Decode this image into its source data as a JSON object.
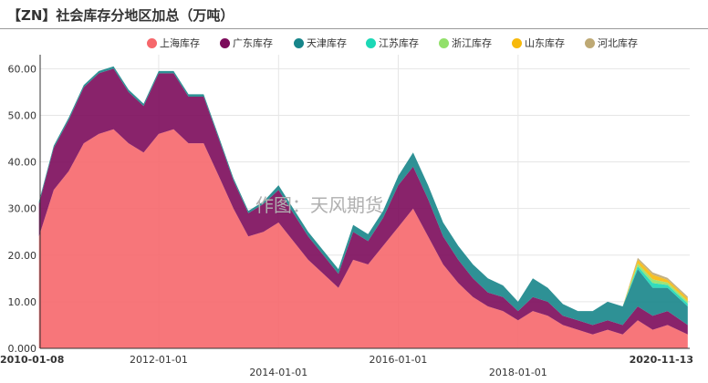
{
  "title": "【ZN】社会库存分地区加总（万吨）",
  "watermark": "作图：天风期货",
  "chart_data": {
    "type": "area",
    "stacked": true,
    "title": "【ZN】社会库存分地区加总（万吨）",
    "xlabel": "",
    "ylabel": "",
    "x_start": "2010-01-08",
    "x_end": "2020-11-13",
    "x_ticks": [
      "2010-01-08",
      "2012-01-01",
      "2014-01-01",
      "2016-01-01",
      "2018-01-01",
      "2020-11-13"
    ],
    "y_ticks": [
      "0.000",
      "10.00",
      "20.00",
      "30.00",
      "40.00",
      "50.00",
      "60.00"
    ],
    "ylim": [
      0,
      63
    ],
    "grid": true,
    "legend_position": "top",
    "x": [
      "2010-01",
      "2010-04",
      "2010-07",
      "2010-10",
      "2011-01",
      "2011-04",
      "2011-07",
      "2011-10",
      "2012-01",
      "2012-04",
      "2012-07",
      "2012-10",
      "2013-01",
      "2013-04",
      "2013-07",
      "2013-10",
      "2014-01",
      "2014-04",
      "2014-07",
      "2014-10",
      "2015-01",
      "2015-04",
      "2015-07",
      "2015-10",
      "2016-01",
      "2016-04",
      "2016-07",
      "2016-10",
      "2017-01",
      "2017-04",
      "2017-07",
      "2017-10",
      "2018-01",
      "2018-04",
      "2018-07",
      "2018-10",
      "2019-01",
      "2019-04",
      "2019-07",
      "2019-10",
      "2020-01",
      "2020-04",
      "2020-07",
      "2020-11"
    ],
    "series": [
      {
        "name": "上海库存",
        "color": "#f6676b",
        "values": [
          24,
          34,
          38,
          44,
          46,
          47,
          44,
          42,
          46,
          47,
          44,
          44,
          37,
          30,
          24,
          25,
          27,
          23,
          19,
          16,
          13,
          19,
          18,
          22,
          26,
          30,
          24,
          18,
          14,
          11,
          9,
          8,
          6,
          8,
          7,
          5,
          4,
          3,
          4,
          3,
          6,
          4,
          5,
          3
        ]
      },
      {
        "name": "广东库存",
        "color": "#7c0b5b",
        "values": [
          7,
          9,
          11,
          12,
          13,
          13,
          11,
          10,
          13,
          12,
          10,
          10,
          8,
          6,
          5,
          6,
          7,
          6,
          5,
          4,
          3,
          6,
          5,
          6,
          9,
          9,
          8,
          6,
          5,
          4,
          3,
          3,
          2,
          3,
          3,
          2,
          2,
          2,
          2,
          2,
          3,
          3,
          3,
          2
        ]
      },
      {
        "name": "天津库存",
        "color": "#17858a",
        "values": [
          0.5,
          0.5,
          0.5,
          0.5,
          0.5,
          0.5,
          0.5,
          0.5,
          0.5,
          0.5,
          0.5,
          0.5,
          0.5,
          0.5,
          0.5,
          0.5,
          1,
          1,
          1,
          1,
          1,
          1.5,
          1.5,
          1.5,
          2,
          3,
          3,
          3,
          3,
          3,
          3,
          2.5,
          2,
          4,
          3,
          2.5,
          2,
          3,
          4,
          4,
          8,
          6,
          5,
          4
        ]
      },
      {
        "name": "江苏库存",
        "color": "#1cd8b6",
        "values": [
          0,
          0,
          0,
          0,
          0,
          0,
          0,
          0,
          0,
          0,
          0,
          0,
          0,
          0,
          0,
          0,
          0,
          0,
          0,
          0,
          0,
          0,
          0,
          0,
          0,
          0,
          0,
          0,
          0,
          0,
          0,
          0,
          0,
          0,
          0,
          0,
          0,
          0,
          0,
          0,
          0.6,
          1,
          0.6,
          0.6
        ]
      },
      {
        "name": "浙江库存",
        "color": "#92e06a",
        "values": [
          0,
          0,
          0,
          0,
          0,
          0,
          0,
          0,
          0,
          0,
          0,
          0,
          0,
          0,
          0,
          0,
          0,
          0,
          0,
          0,
          0,
          0,
          0,
          0,
          0,
          0,
          0,
          0,
          0,
          0,
          0,
          0,
          0,
          0,
          0,
          0,
          0,
          0,
          0,
          0,
          0.6,
          0.8,
          0.5,
          0.5
        ]
      },
      {
        "name": "山东库存",
        "color": "#f7b90b",
        "values": [
          0,
          0,
          0,
          0,
          0,
          0,
          0,
          0,
          0,
          0,
          0,
          0,
          0,
          0,
          0,
          0,
          0,
          0,
          0,
          0,
          0,
          0,
          0,
          0,
          0,
          0,
          0,
          0,
          0,
          0,
          0,
          0,
          0,
          0,
          0,
          0,
          0,
          0,
          0,
          0,
          0.8,
          1,
          0.6,
          0.6
        ]
      },
      {
        "name": "河北库存",
        "color": "#bea974",
        "values": [
          0,
          0,
          0,
          0,
          0,
          0,
          0,
          0,
          0,
          0,
          0,
          0,
          0,
          0,
          0,
          0,
          0,
          0,
          0,
          0,
          0,
          0,
          0,
          0,
          0,
          0,
          0,
          0,
          0,
          0,
          0,
          0,
          0,
          0,
          0,
          0,
          0,
          0,
          0,
          0,
          0.4,
          0.5,
          0.4,
          0.4
        ]
      }
    ]
  }
}
